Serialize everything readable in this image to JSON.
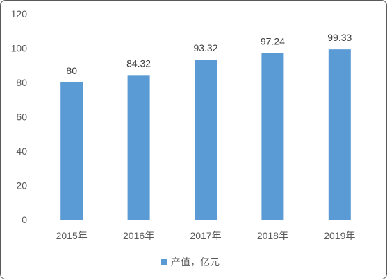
{
  "chart_data": {
    "type": "bar",
    "categories": [
      "2015年",
      "2016年",
      "2017年",
      "2018年",
      "2019年"
    ],
    "series": [
      {
        "name": "产值，亿元",
        "values": [
          80,
          84.32,
          93.32,
          97.24,
          99.33
        ],
        "color": "#5B9BD5"
      }
    ],
    "data_labels": [
      "80",
      "84.32",
      "93.32",
      "97.24",
      "99.33"
    ],
    "ylim": [
      0,
      120
    ],
    "y_ticks": [
      0,
      20,
      40,
      60,
      80,
      100,
      120
    ],
    "grid": false,
    "legend_position": "bottom",
    "axis_color": "#D9D9D9"
  }
}
